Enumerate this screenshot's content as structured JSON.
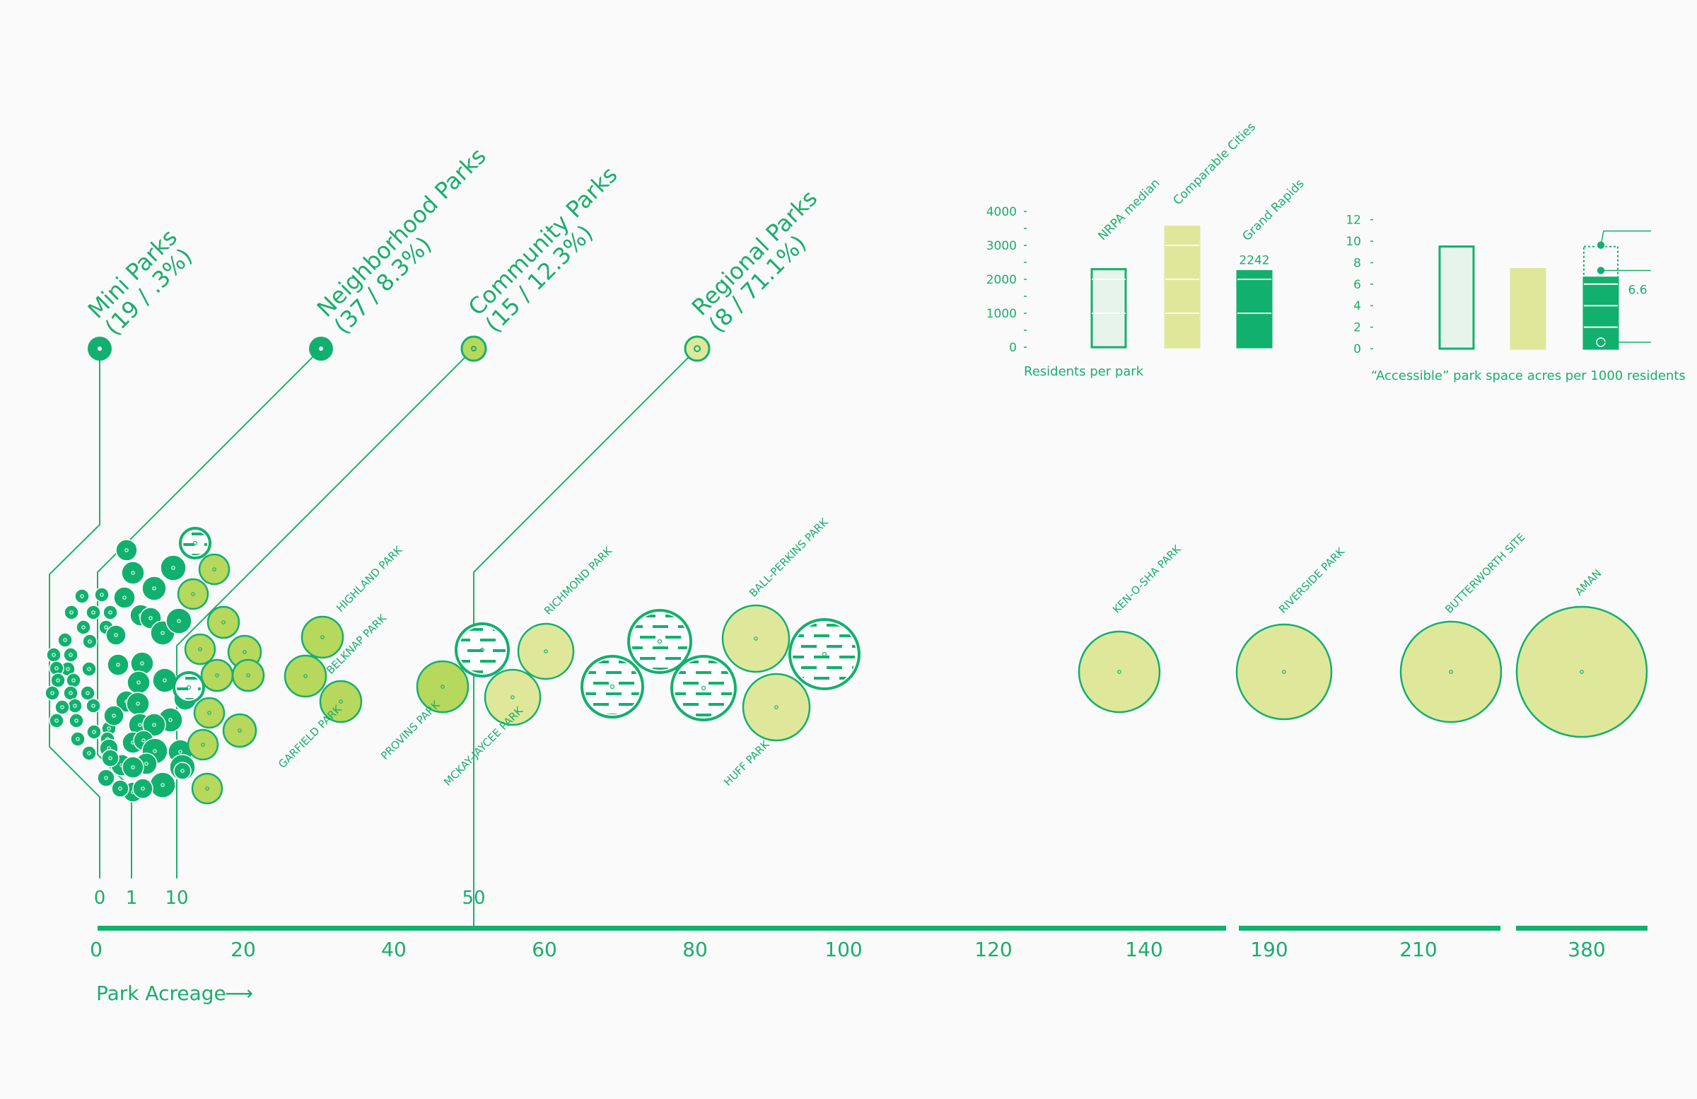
{
  "colors": {
    "dark": "#12b06e",
    "light": "#dfe89a",
    "mid": "#b6d85c",
    "pale": "#e6f4ec",
    "ink": "#1aad6e",
    "line": "#1fae6e",
    "background": "#fafafa"
  },
  "categories": [
    {
      "name": "Mini Parks",
      "stats": "(19 / .3%)",
      "tone": "dark",
      "threshold": "0"
    },
    {
      "name": "Neighborhood Parks",
      "stats": "(37 / 8.3%)",
      "tone": "dark",
      "threshold": "1"
    },
    {
      "name": "Community Parks",
      "stats": "(15 / 12.3%)",
      "tone": "mid",
      "threshold": "10"
    },
    {
      "name": "Regional Parks",
      "stats": "(8 / 71.1%)",
      "tone": "light",
      "threshold": "50"
    }
  ],
  "axis": {
    "label": "Park Acreage",
    "arrow": "⟶",
    "ticks": [
      "0",
      "20",
      "40",
      "60",
      "80",
      "100",
      "120",
      "140",
      "190",
      "210",
      "380"
    ]
  },
  "parks": {
    "labels": [
      "HIGHLAND PARK",
      "BELKNAP PARK",
      "GARFIELD PARK",
      "PROVINS PARK",
      "MCKAY-JAYCEE PARK",
      "RICHMOND PARK",
      "BALL-PERKINS PARK",
      "HUFF PARK",
      "KEN-O-SHA PARK",
      "RIVERSIDE PARK",
      "BUTTERWORTH SITE",
      "AMAN"
    ]
  },
  "chart_data": [
    {
      "type": "bar",
      "title": "",
      "xlabel": "",
      "ylabel": "Residents per park",
      "categories": [
        "NRPA median",
        "Comparable Cities",
        "Grand Rapids"
      ],
      "values": [
        2300,
        3550,
        2242
      ],
      "data_labels": [
        "",
        "",
        "2242"
      ],
      "yticks": [
        "0",
        "1000",
        "2000",
        "3000",
        "4000"
      ],
      "ylim": [
        0,
        4000
      ]
    },
    {
      "type": "bar",
      "title": "",
      "xlabel": "",
      "ylabel": "“Accessible” park space acres per 1000 residents",
      "categories": [
        "NRPA median",
        "Comparable Cities",
        "Grand Rapids"
      ],
      "values": [
        9.5,
        7.4,
        6.6
      ],
      "data_labels": [
        "",
        "",
        "6.6"
      ],
      "yticks": [
        "0",
        "2",
        "4",
        "6",
        "8",
        "10",
        "12"
      ],
      "ylim": [
        0,
        12
      ]
    }
  ]
}
